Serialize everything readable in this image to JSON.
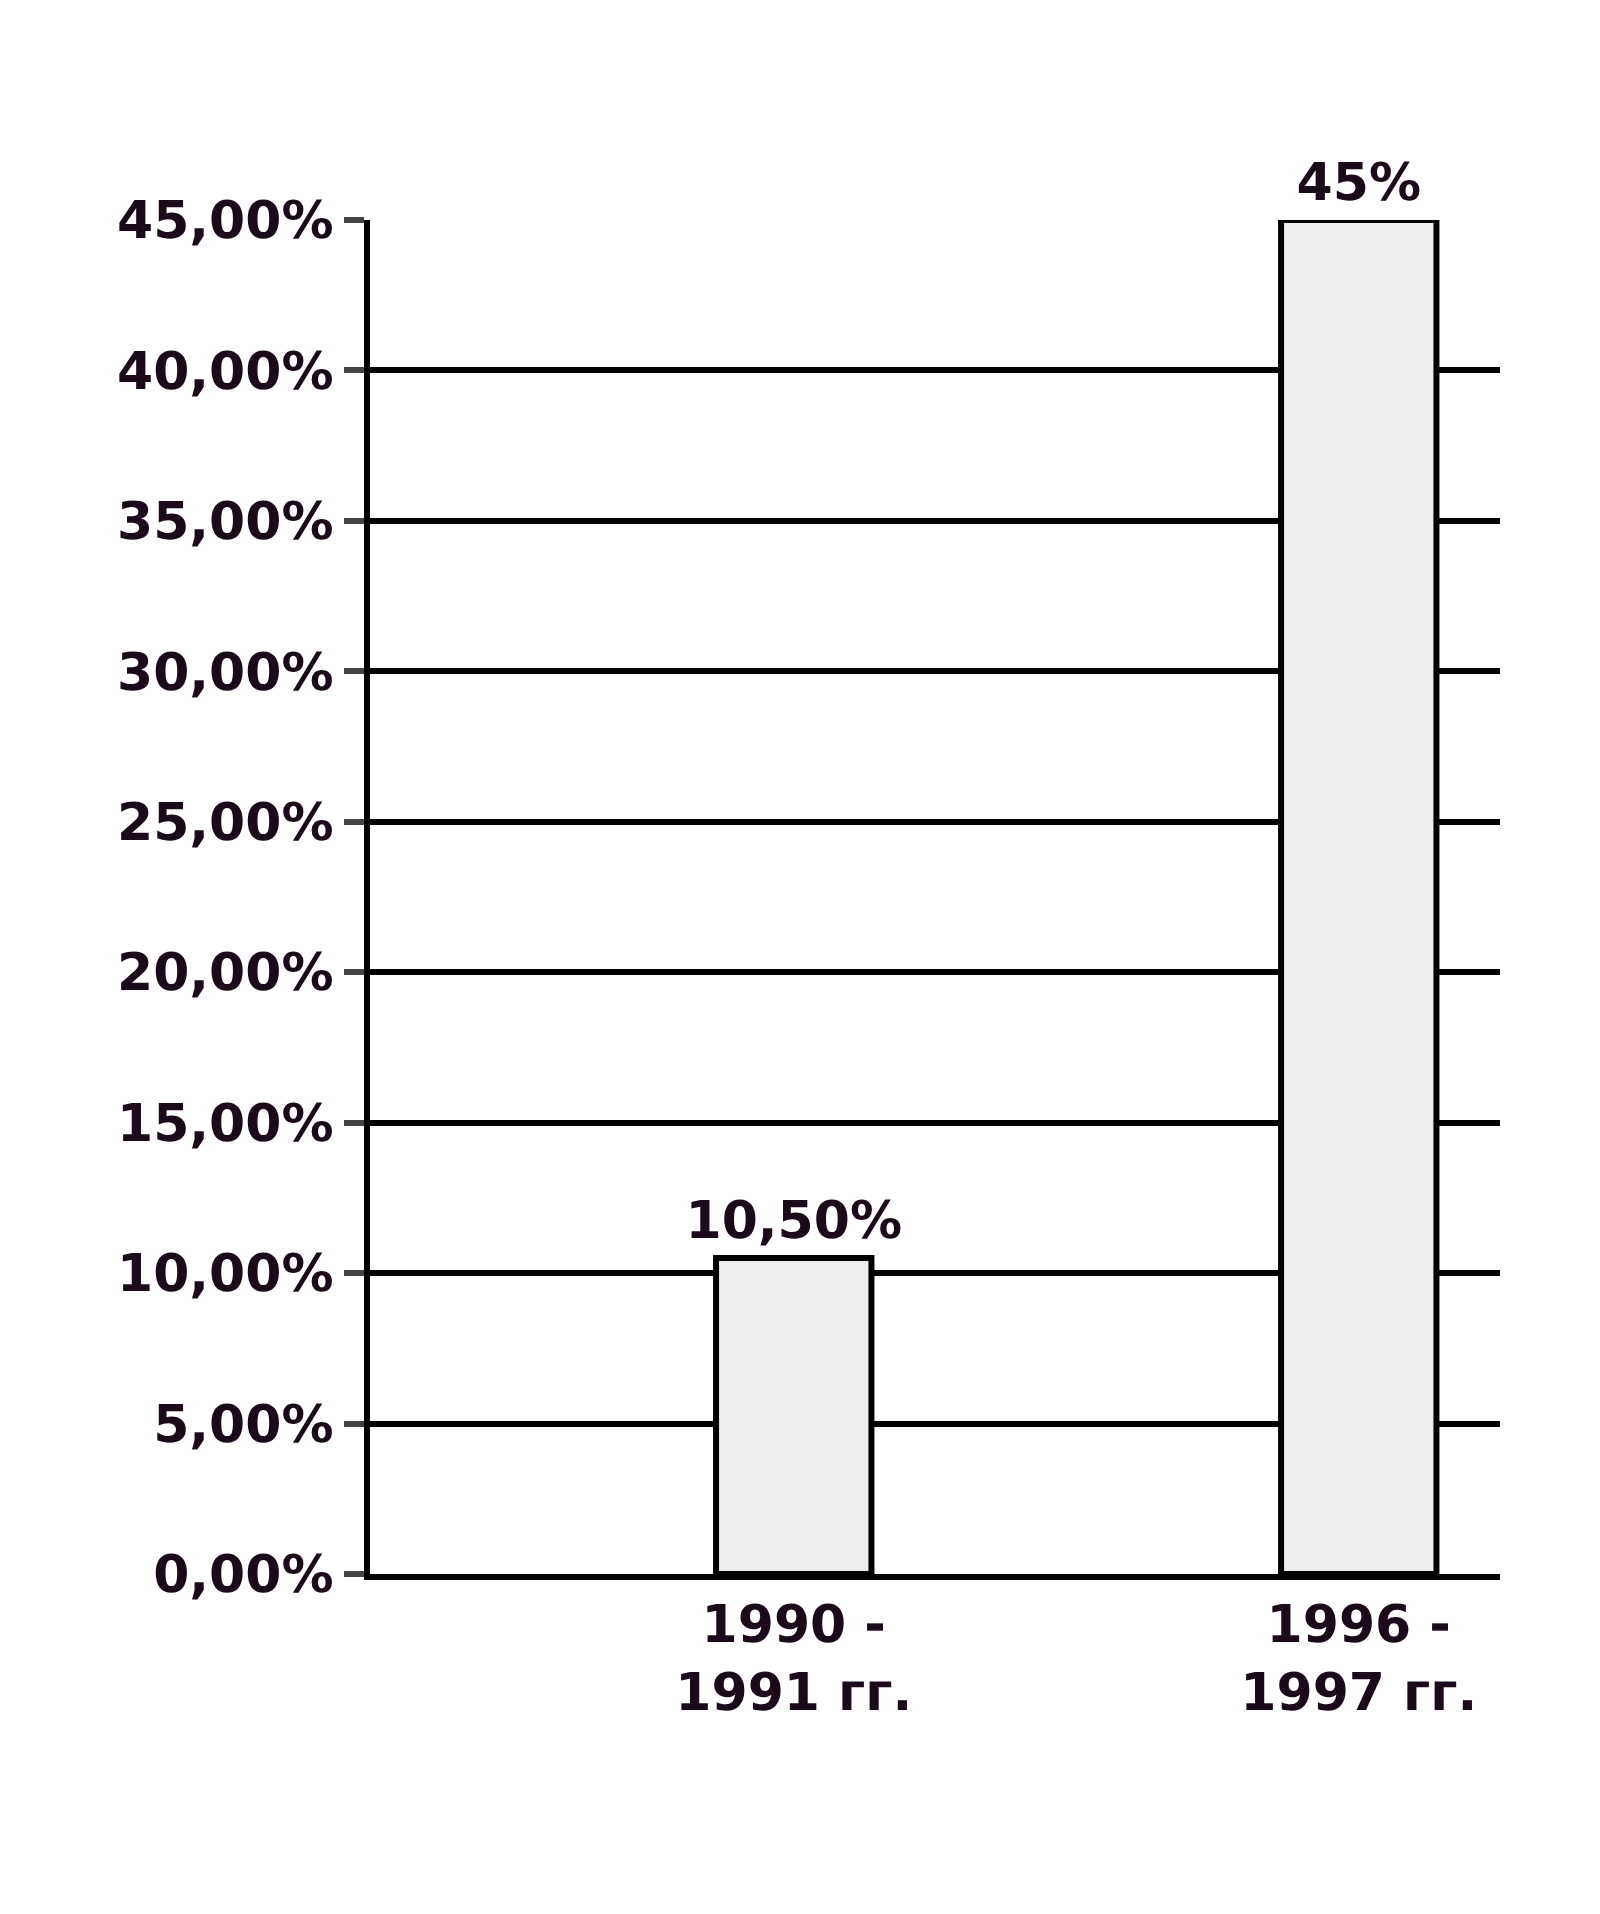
{
  "chart_data": {
    "type": "bar",
    "categories": [
      null,
      "1990 -\n1991 гг.",
      null,
      "1996 -\n1997 гг."
    ],
    "values": [
      null,
      10.5,
      null,
      45
    ],
    "value_labels": [
      null,
      "10,50%",
      null,
      "45%"
    ],
    "color": "#eeeeee",
    "ylim": [
      0,
      45
    ],
    "yticks": [
      {
        "value": 0,
        "label": "0,00%"
      },
      {
        "value": 5,
        "label": "5,00%"
      },
      {
        "value": 10,
        "label": "10,00%"
      },
      {
        "value": 15,
        "label": "15,00%"
      },
      {
        "value": 20,
        "label": "20,00%"
      },
      {
        "value": 25,
        "label": "25,00%"
      },
      {
        "value": 30,
        "label": "30,00%"
      },
      {
        "value": 35,
        "label": "35,00%"
      },
      {
        "value": 40,
        "label": "40,00%"
      },
      {
        "value": 45,
        "label": "45,00%"
      }
    ],
    "grid": "y"
  }
}
